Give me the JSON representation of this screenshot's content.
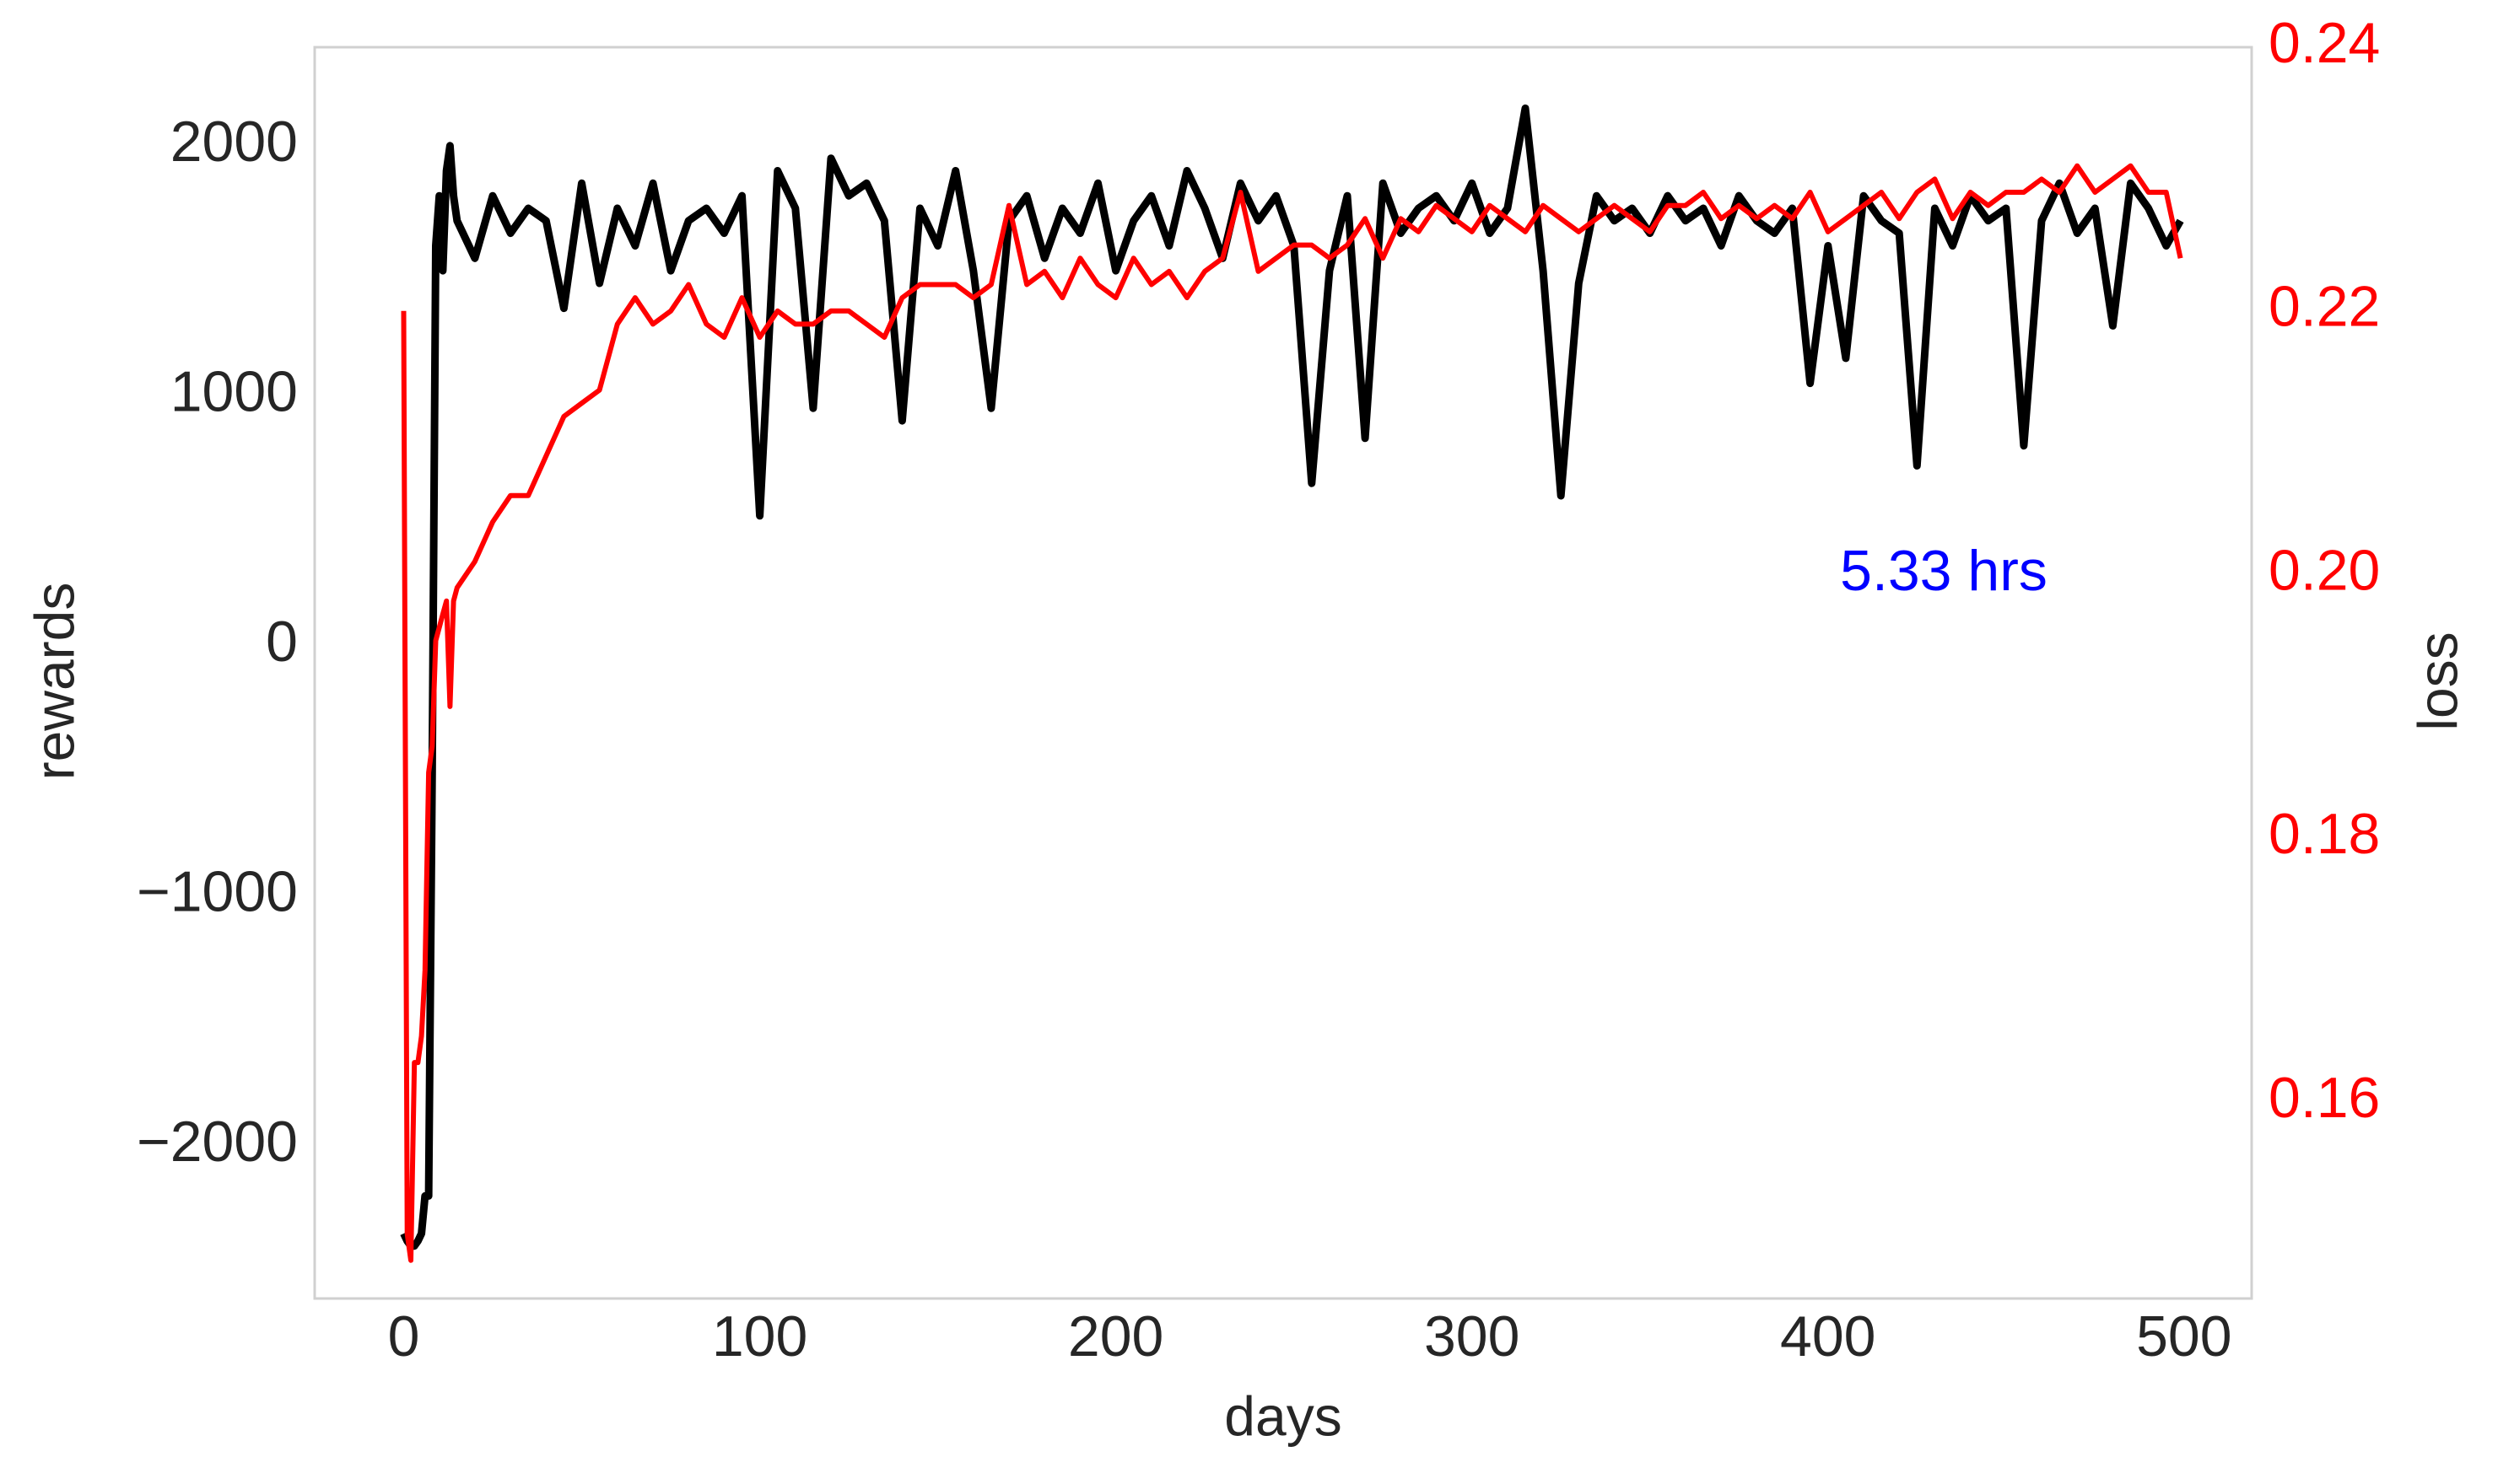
{
  "chart_data": {
    "type": "line",
    "xlabel": "days",
    "ylabel": "rewards",
    "y2label": "loss",
    "annotation": {
      "text": "5.33 hrs",
      "color": "#0000ff"
    },
    "x": [
      0,
      1,
      2,
      3,
      4,
      5,
      6,
      7,
      8,
      9,
      10,
      11,
      12,
      13,
      14,
      15,
      20,
      25,
      30,
      35,
      40,
      45,
      50,
      55,
      60,
      65,
      70,
      75,
      80,
      85,
      90,
      95,
      100,
      105,
      110,
      115,
      120,
      125,
      130,
      135,
      140,
      145,
      150,
      155,
      160,
      165,
      170,
      175,
      180,
      185,
      190,
      195,
      200,
      205,
      210,
      215,
      220,
      225,
      230,
      235,
      240,
      245,
      250,
      255,
      260,
      265,
      270,
      275,
      280,
      285,
      290,
      295,
      300,
      305,
      310,
      315,
      320,
      325,
      330,
      335,
      340,
      345,
      350,
      355,
      360,
      365,
      370,
      375,
      380,
      385,
      390,
      395,
      400,
      405,
      410,
      415,
      420,
      425,
      430,
      435,
      440,
      445,
      450,
      455,
      460,
      465,
      470,
      475,
      480,
      485,
      490,
      495,
      499
    ],
    "series": [
      {
        "color": "#000000",
        "values": [
          -2350,
          -2380,
          -2400,
          -2400,
          -2380,
          -2350,
          -2200,
          -2200,
          -500,
          1600,
          1800,
          1500,
          1900,
          2000,
          1800,
          1700,
          1550,
          1800,
          1650,
          1750,
          1700,
          1350,
          1850,
          1450,
          1750,
          1600,
          1850,
          1500,
          1700,
          1750,
          1650,
          1800,
          520,
          1900,
          1750,
          950,
          1950,
          1800,
          1850,
          1700,
          900,
          1750,
          1600,
          1900,
          1500,
          950,
          1700,
          1800,
          1550,
          1750,
          1650,
          1850,
          1500,
          1700,
          1800,
          1600,
          1900,
          1750,
          1550,
          1850,
          1700,
          1800,
          1600,
          650,
          1500,
          1800,
          830,
          1850,
          1650,
          1750,
          1800,
          1700,
          1850,
          1650,
          1750,
          2150,
          1500,
          600,
          1450,
          1800,
          1700,
          1750,
          1650,
          1800,
          1700,
          1750,
          1600,
          1800,
          1700,
          1650,
          1750,
          1050,
          1600,
          1150,
          1800,
          1700,
          1650,
          720,
          1750,
          1600,
          1800,
          1700,
          1750,
          800,
          1700,
          1850,
          1650,
          1750,
          1280,
          1850,
          1750,
          1600,
          1700
        ]
      },
      {
        "color": "#ff0000",
        "axis": "y2",
        "values": [
          0.22,
          0.15,
          0.148,
          0.163,
          0.163,
          0.165,
          0.17,
          0.185,
          0.187,
          0.195,
          0.196,
          0.197,
          0.198,
          0.19,
          0.198,
          0.199,
          0.201,
          0.204,
          0.206,
          0.206,
          0.209,
          0.212,
          0.213,
          0.214,
          0.219,
          0.221,
          0.219,
          0.22,
          0.222,
          0.219,
          0.218,
          0.221,
          0.218,
          0.22,
          0.219,
          0.219,
          0.22,
          0.22,
          0.219,
          0.218,
          0.221,
          0.222,
          0.222,
          0.222,
          0.221,
          0.222,
          0.228,
          0.222,
          0.223,
          0.221,
          0.224,
          0.222,
          0.221,
          0.224,
          0.222,
          0.223,
          0.221,
          0.223,
          0.224,
          0.229,
          0.223,
          0.224,
          0.225,
          0.225,
          0.224,
          0.225,
          0.227,
          0.224,
          0.227,
          0.226,
          0.228,
          0.227,
          0.226,
          0.228,
          0.227,
          0.226,
          0.228,
          0.227,
          0.226,
          0.227,
          0.228,
          0.227,
          0.226,
          0.228,
          0.228,
          0.229,
          0.227,
          0.228,
          0.227,
          0.228,
          0.227,
          0.229,
          0.226,
          0.227,
          0.228,
          0.229,
          0.227,
          0.229,
          0.23,
          0.227,
          0.229,
          0.228,
          0.229,
          0.229,
          0.23,
          0.229,
          0.231,
          0.229,
          0.23,
          0.231,
          0.229,
          0.229,
          0.224
        ]
      }
    ],
    "xlim": [
      -25,
      519
    ],
    "xticks": [
      0,
      100,
      200,
      300,
      400,
      500
    ],
    "ylim": [
      -2610,
      2394
    ],
    "yticks": [
      {
        "value": -2000,
        "label": "−2000"
      },
      {
        "value": -1000,
        "label": "−1000"
      },
      0,
      1000,
      2000
    ],
    "y2lim": [
      0.1451,
      0.24
    ],
    "y2ticks": [
      0.16,
      0.18,
      {
        "value": 0.2,
        "label": "0.20"
      },
      0.22,
      0.24
    ],
    "y2color": "#ff0000",
    "grid": false
  }
}
